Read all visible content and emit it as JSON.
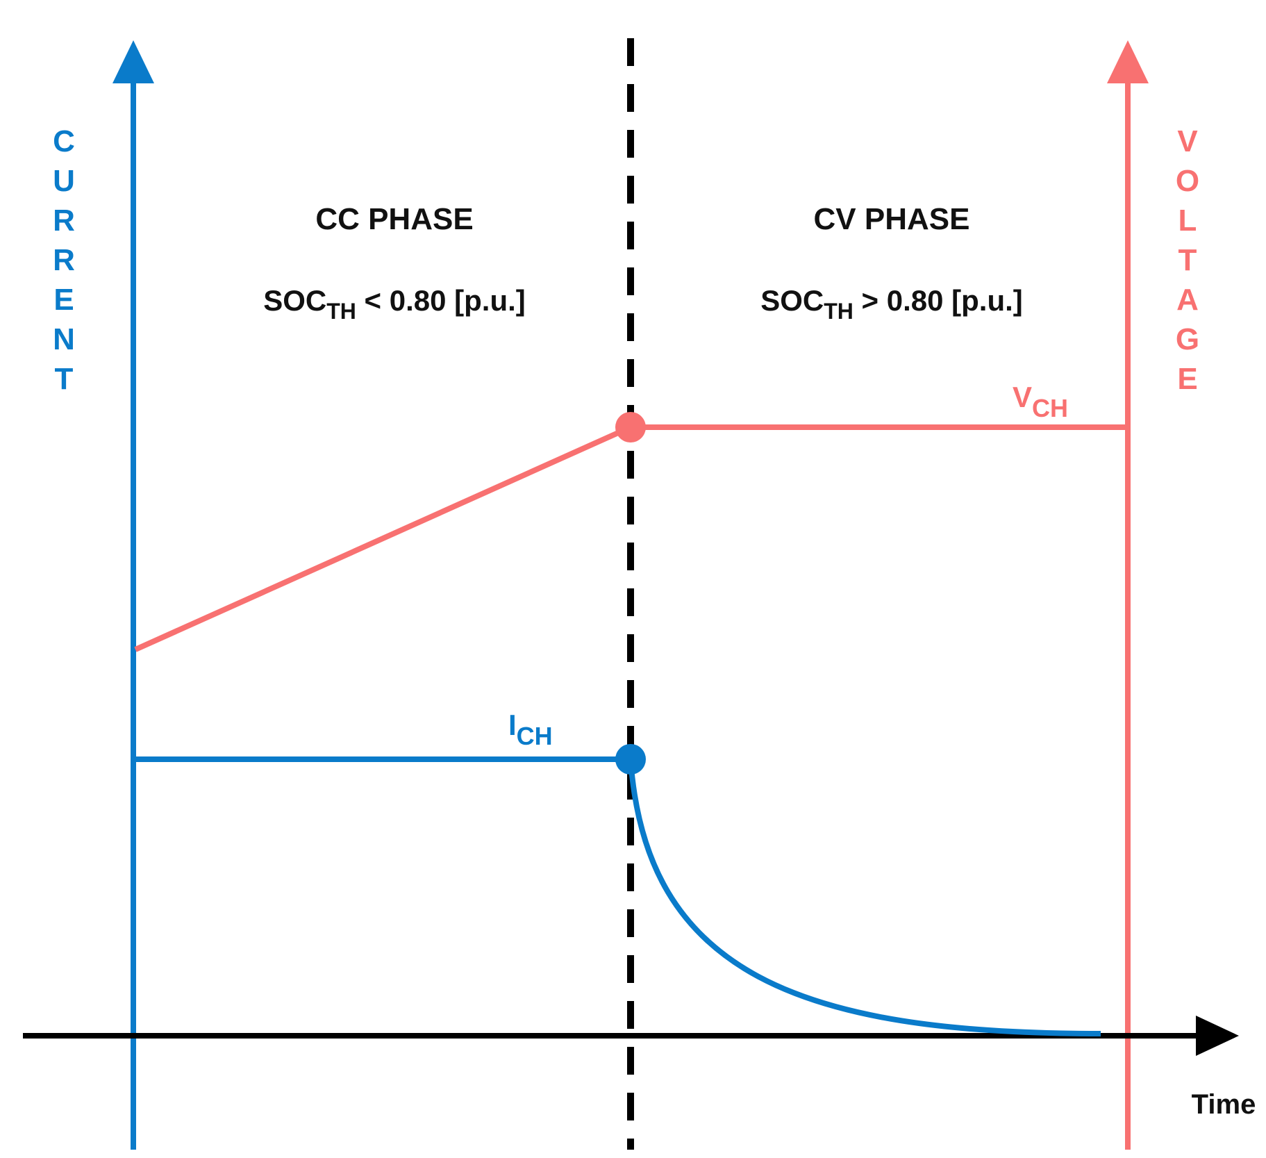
{
  "colors": {
    "current": "#0A7BCA",
    "voltage": "#F87171",
    "axis": "#000000",
    "text": "#111111"
  },
  "axes": {
    "left_label": "CURRENT",
    "right_label": "VOLTAGE",
    "x_label": "Time"
  },
  "phases": [
    {
      "title": "CC PHASE",
      "condition_main": "SOC",
      "condition_sub": "TH",
      "condition_rest": " < 0.80 [p.u.]"
    },
    {
      "title": "CV PHASE",
      "condition_main": "SOC",
      "condition_sub": "TH",
      "condition_rest": " > 0.80 [p.u.]"
    }
  ],
  "annotations": {
    "ich_main": "I",
    "ich_sub": "CH",
    "vch_main": "V",
    "vch_sub": "CH"
  }
}
